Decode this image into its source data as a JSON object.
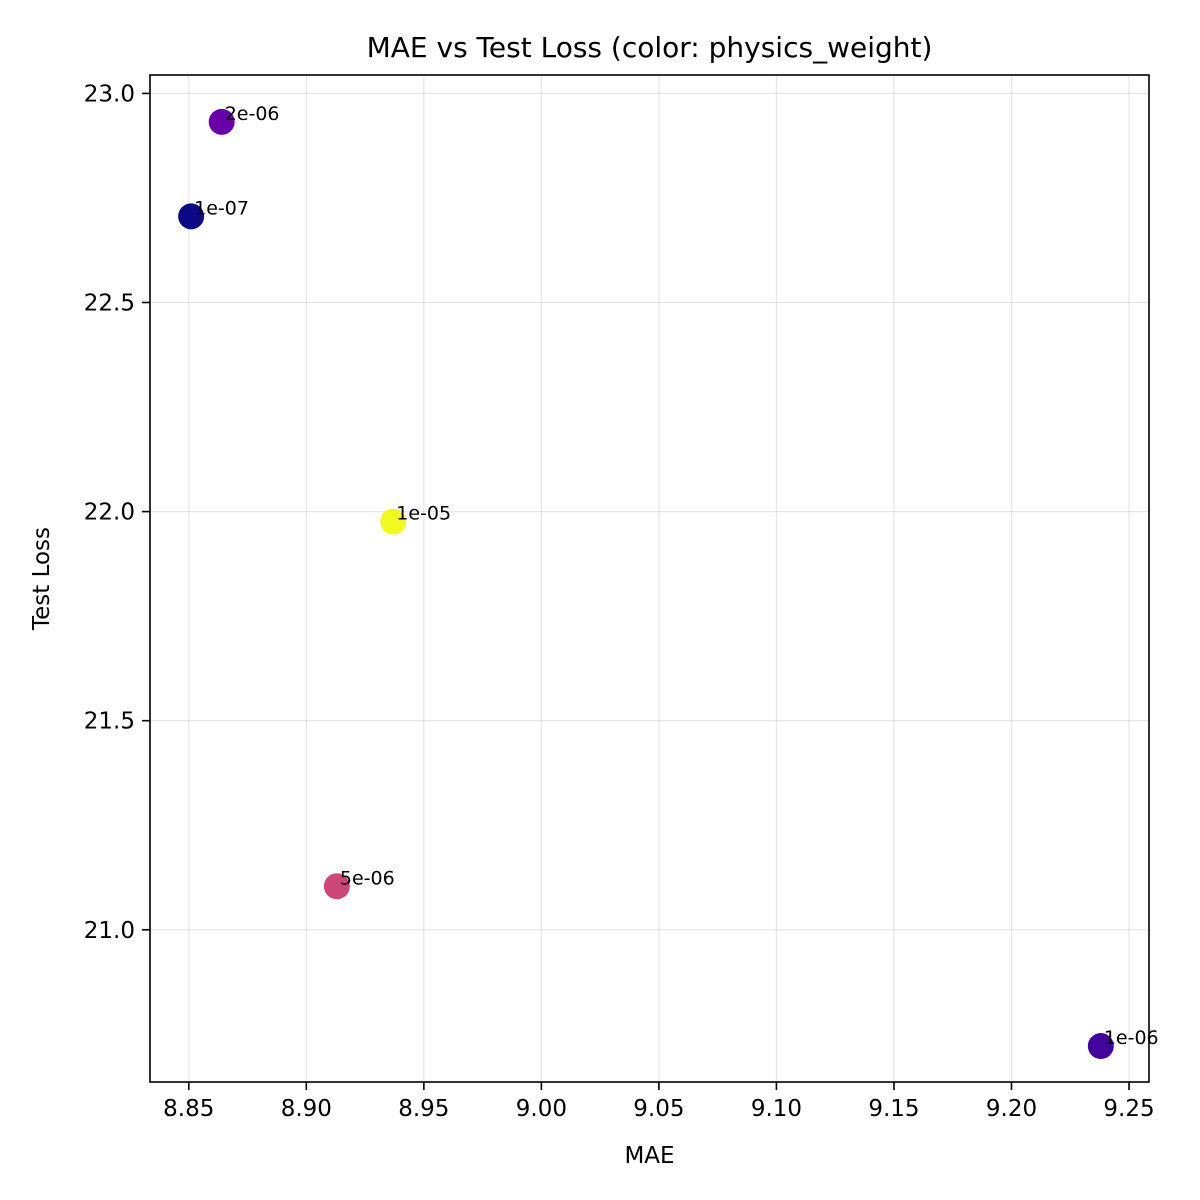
{
  "chart_data": {
    "type": "scatter",
    "title": "MAE vs Test Loss (color: physics_weight)",
    "xlabel": "MAE",
    "ylabel": "Test Loss",
    "xlim": [
      8.8335,
      9.2585
    ],
    "ylim": [
      20.636,
      23.044
    ],
    "xticks": [
      "8.85",
      "8.90",
      "8.95",
      "9.00",
      "9.05",
      "9.10",
      "9.15",
      "9.20",
      "9.25"
    ],
    "yticks": [
      "21.0",
      "21.5",
      "22.0",
      "22.5",
      "23.0"
    ],
    "xtick_values": [
      8.85,
      8.9,
      8.95,
      9.0,
      9.05,
      9.1,
      9.15,
      9.2,
      9.25
    ],
    "ytick_values": [
      21.0,
      21.5,
      22.0,
      22.5,
      23.0
    ],
    "grid": true,
    "color_by": "physics_weight",
    "colormap": "plasma",
    "points": [
      {
        "x": 8.851,
        "y": 22.706,
        "label": "1e-07",
        "color": "#0d0887"
      },
      {
        "x": 8.864,
        "y": 22.932,
        "label": "2e-06",
        "color": "#6a00a8"
      },
      {
        "x": 8.937,
        "y": 21.976,
        "label": "1e-05",
        "color": "#f0f921"
      },
      {
        "x": 8.913,
        "y": 21.104,
        "label": "5e-06",
        "color": "#cc4778"
      },
      {
        "x": 9.238,
        "y": 20.722,
        "label": "1e-06",
        "color": "#41049d"
      }
    ]
  }
}
